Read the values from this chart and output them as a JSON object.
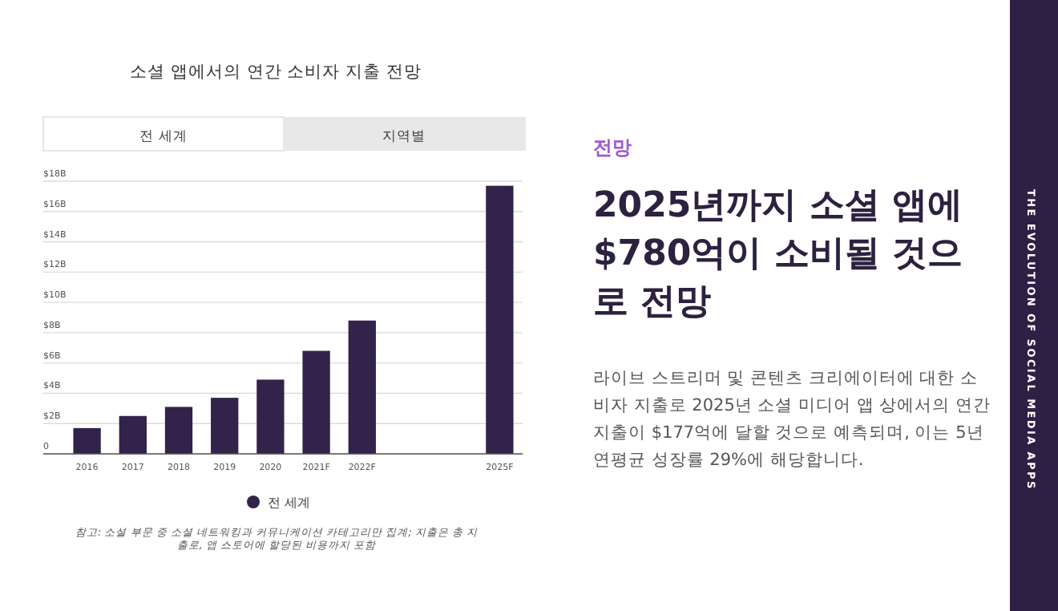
{
  "chart_data": [
    {
      "type": "bar",
      "title": "소셜 앱에서의 연간 소비자 지출 전망",
      "categories": [
        "2016",
        "2017",
        "2018",
        "2019",
        "2020",
        "2021F",
        "2022F",
        null,
        null,
        "2025F"
      ],
      "series": [
        {
          "name": "전 세계",
          "color": "#33224a",
          "values": [
            1.7,
            2.5,
            3.1,
            3.7,
            4.9,
            6.8,
            8.8,
            null,
            null,
            17.7
          ]
        }
      ],
      "ylim": [
        0,
        18
      ],
      "yticks": [
        0,
        {
          "value": 2,
          "label": "$2B"
        },
        {
          "value": 4,
          "label": "$4B"
        },
        {
          "value": 6,
          "label": "$6B"
        },
        {
          "value": 8,
          "label": "$8B"
        },
        {
          "value": 10,
          "label": "$10B"
        },
        {
          "value": 12,
          "label": "$12B"
        },
        {
          "value": 14,
          "label": "$14B"
        },
        {
          "value": 16,
          "label": "$16B"
        },
        {
          "value": 18,
          "label": "$18B"
        }
      ],
      "grid": "y",
      "legend": "bottom",
      "annotations": [
        "전 세계",
        "지역별",
        "참고: 소셜 부문 중 소셜 네트워킹과 커뮤니케이션 카테고리만 집계; 지출은 총 지출로, 앱 스토어에 할당된 비용까지 포함"
      ]
    },
    {
      "type": "other",
      "subtitle": "전망",
      "title": "2025년까지 소셜 앱에 $780억이 소비될 것으로 전망",
      "annotations": [
        "라이브 스트리머 및 콘텐츠 크리에이터에 대한 소비자 지출로 2025년 소셜 미디어 앱 상에서의 연간 지출이 $177억에 달할 것으로 예측되며, 이는 5년 연평균 성장률 29%에 해당합니다.",
        "THE EVOLUTION OF SOCIAL MEDIA APPS"
      ]
    }
  ]
}
